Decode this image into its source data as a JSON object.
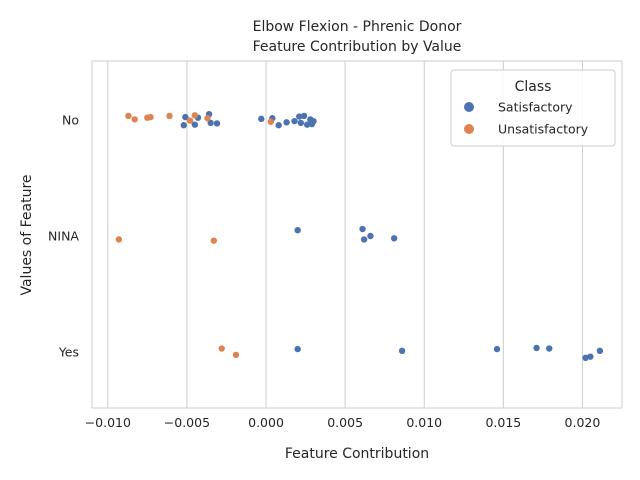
{
  "chart_data": {
    "type": "scatter",
    "title_line1": "Elbow Flexion - Phrenic Donor",
    "title_line2": "Feature Contribution by Value",
    "xlabel": "Feature Contribution",
    "ylabel": "Values of Feature",
    "xlim": [
      -0.011,
      0.0225
    ],
    "x_ticks": [
      -0.01,
      -0.005,
      0.0,
      0.005,
      0.01,
      0.015,
      0.02
    ],
    "x_tick_labels": [
      "−0.010",
      "−0.005",
      "0.000",
      "0.005",
      "0.010",
      "0.015",
      "0.020"
    ],
    "categories": [
      "No",
      "NINA",
      "Yes"
    ],
    "grid": "vertical",
    "legend": {
      "title": "Class",
      "position": "top-right"
    },
    "series": [
      {
        "name": "Satisfactory",
        "color": "#4c72b0",
        "points": [
          {
            "x": -0.0051,
            "y": "No",
            "jitter": 0.05
          },
          {
            "x": -0.0043,
            "y": "No",
            "jitter": 0.04
          },
          {
            "x": -0.0036,
            "y": "No",
            "jitter": 0.1
          },
          {
            "x": -0.0035,
            "y": "No",
            "jitter": -0.05
          },
          {
            "x": -0.0031,
            "y": "No",
            "jitter": -0.06
          },
          {
            "x": -0.0052,
            "y": "No",
            "jitter": -0.09
          },
          {
            "x": -0.0045,
            "y": "No",
            "jitter": -0.08
          },
          {
            "x": -0.0003,
            "y": "No",
            "jitter": 0.02
          },
          {
            "x": 0.0004,
            "y": "No",
            "jitter": 0.03
          },
          {
            "x": 0.0008,
            "y": "No",
            "jitter": -0.09
          },
          {
            "x": 0.0013,
            "y": "No",
            "jitter": -0.04
          },
          {
            "x": 0.0018,
            "y": "No",
            "jitter": -0.02
          },
          {
            "x": 0.0021,
            "y": "No",
            "jitter": 0.06
          },
          {
            "x": 0.0022,
            "y": "No",
            "jitter": -0.05
          },
          {
            "x": 0.0024,
            "y": "No",
            "jitter": 0.07
          },
          {
            "x": 0.0026,
            "y": "No",
            "jitter": -0.08
          },
          {
            "x": 0.0028,
            "y": "No",
            "jitter": 0.01
          },
          {
            "x": 0.0029,
            "y": "No",
            "jitter": -0.07
          },
          {
            "x": 0.003,
            "y": "No",
            "jitter": -0.02
          },
          {
            "x": 0.002,
            "y": "NINA",
            "jitter": 0.1
          },
          {
            "x": 0.0061,
            "y": "NINA",
            "jitter": 0.12
          },
          {
            "x": 0.0066,
            "y": "NINA",
            "jitter": 0.0
          },
          {
            "x": 0.0062,
            "y": "NINA",
            "jitter": -0.06
          },
          {
            "x": 0.0081,
            "y": "NINA",
            "jitter": -0.04
          },
          {
            "x": 0.002,
            "y": "Yes",
            "jitter": 0.05
          },
          {
            "x": 0.0086,
            "y": "Yes",
            "jitter": 0.02
          },
          {
            "x": 0.0146,
            "y": "Yes",
            "jitter": 0.05
          },
          {
            "x": 0.0171,
            "y": "Yes",
            "jitter": 0.07
          },
          {
            "x": 0.0179,
            "y": "Yes",
            "jitter": 0.06
          },
          {
            "x": 0.0211,
            "y": "Yes",
            "jitter": 0.02
          },
          {
            "x": 0.0205,
            "y": "Yes",
            "jitter": -0.08
          },
          {
            "x": 0.0202,
            "y": "Yes",
            "jitter": -0.1
          }
        ]
      },
      {
        "name": "Unsatisfactory",
        "color": "#dd8452",
        "points": [
          {
            "x": -0.0087,
            "y": "No",
            "jitter": 0.07
          },
          {
            "x": -0.0083,
            "y": "No",
            "jitter": 0.01
          },
          {
            "x": -0.0075,
            "y": "No",
            "jitter": 0.04
          },
          {
            "x": -0.0073,
            "y": "No",
            "jitter": 0.05
          },
          {
            "x": -0.0061,
            "y": "No",
            "jitter": 0.07
          },
          {
            "x": -0.0048,
            "y": "No",
            "jitter": -0.01
          },
          {
            "x": -0.0045,
            "y": "No",
            "jitter": 0.08
          },
          {
            "x": -0.0037,
            "y": "No",
            "jitter": 0.03
          },
          {
            "x": 0.0003,
            "y": "No",
            "jitter": -0.03
          },
          {
            "x": -0.0093,
            "y": "NINA",
            "jitter": -0.06
          },
          {
            "x": -0.0033,
            "y": "NINA",
            "jitter": -0.08
          },
          {
            "x": -0.0028,
            "y": "Yes",
            "jitter": 0.06
          },
          {
            "x": -0.0019,
            "y": "Yes",
            "jitter": -0.05
          }
        ]
      }
    ]
  }
}
